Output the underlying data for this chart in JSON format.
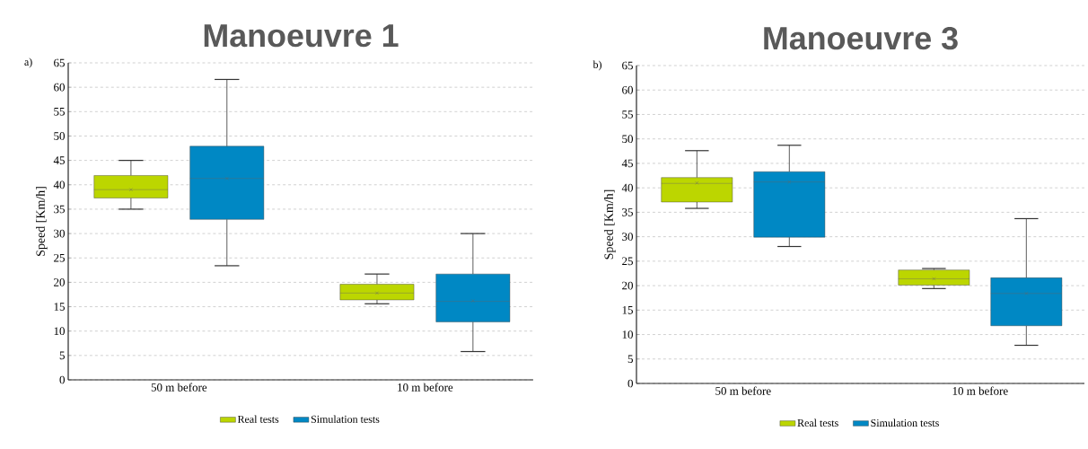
{
  "chart_data": [
    {
      "type": "box",
      "title": "Manoeuvre 1",
      "annotations": [
        "a)"
      ],
      "categories": [
        "50 m before",
        "10 m before"
      ],
      "ylabel": "Speed [Km/h]",
      "ylim": [
        0,
        65
      ],
      "yticks": [
        0,
        5,
        10,
        15,
        20,
        25,
        30,
        35,
        40,
        45,
        50,
        55,
        60,
        65
      ],
      "grid": "y",
      "legend": "bottom",
      "series": [
        {
          "name": "Real tests",
          "color": "#bcd600",
          "boxes": [
            {
              "low": 35.0,
              "q1": 37.3,
              "median": 39.0,
              "q3": 41.9,
              "high": 45.0,
              "mean": 39.0
            },
            {
              "low": 15.6,
              "q1": 16.4,
              "median": 17.8,
              "q3": 19.6,
              "high": 21.7,
              "mean": 17.8
            }
          ]
        },
        {
          "name": "Simulation tests",
          "color": "#0088c4",
          "boxes": [
            {
              "low": 23.4,
              "q1": 32.9,
              "median": 41.3,
              "q3": 47.9,
              "high": 61.6,
              "mean": 41.3
            },
            {
              "low": 5.8,
              "q1": 11.9,
              "median": 16.1,
              "q3": 21.7,
              "high": 30.0,
              "mean": 16.2
            }
          ]
        }
      ]
    },
    {
      "type": "box",
      "title": "Manoeuvre 3",
      "annotations": [
        "b)"
      ],
      "categories": [
        "50 m before",
        "10 m before"
      ],
      "ylabel": "Speed [Km/h]",
      "ylim": [
        0,
        65
      ],
      "yticks": [
        0,
        5,
        10,
        15,
        20,
        25,
        30,
        35,
        40,
        45,
        50,
        55,
        60,
        65
      ],
      "grid": "y",
      "legend": "bottom",
      "series": [
        {
          "name": "Real tests",
          "color": "#bcd600",
          "boxes": [
            {
              "low": 35.8,
              "q1": 37.1,
              "median": 40.9,
              "q3": 42.1,
              "high": 47.6,
              "mean": 41.0
            },
            {
              "low": 19.4,
              "q1": 20.1,
              "median": 21.4,
              "q3": 23.2,
              "high": 23.5,
              "mean": 21.4
            }
          ]
        },
        {
          "name": "Simulation tests",
          "color": "#0088c4",
          "boxes": [
            {
              "low": 28.0,
              "q1": 29.9,
              "median": 41.2,
              "q3": 43.3,
              "high": 48.7,
              "mean": 41.2
            },
            {
              "low": 7.8,
              "q1": 11.8,
              "median": 18.4,
              "q3": 21.6,
              "high": 33.7,
              "mean": 18.4
            }
          ]
        }
      ]
    }
  ]
}
